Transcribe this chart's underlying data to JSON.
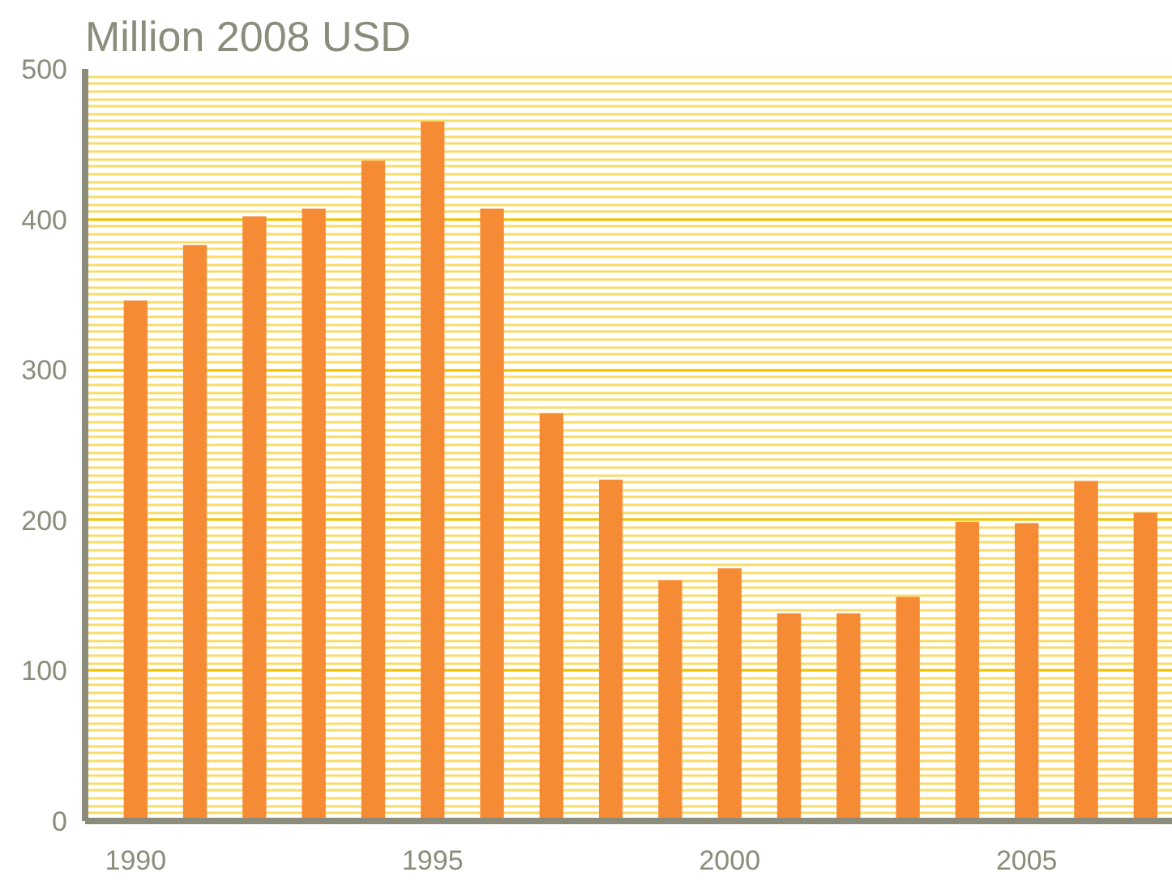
{
  "chart_data": {
    "type": "bar",
    "title": "Million 2008 USD",
    "x": [
      1990,
      1991,
      1992,
      1993,
      1994,
      1995,
      1996,
      1997,
      1998,
      1999,
      2000,
      2001,
      2002,
      2003,
      2004,
      2005,
      2006,
      2007
    ],
    "values": [
      346,
      383,
      402,
      407,
      439,
      465,
      407,
      271,
      227,
      160,
      168,
      138,
      138,
      149,
      199,
      198,
      226,
      205
    ],
    "color": "#f68b36",
    "xlim": [
      1989.15,
      2007.46
    ],
    "xticks": [
      1990,
      1995,
      2000,
      2005
    ],
    "ylim": [
      0,
      500
    ],
    "yticks": [
      0,
      100,
      200,
      300,
      400,
      500
    ],
    "grid": "y"
  }
}
